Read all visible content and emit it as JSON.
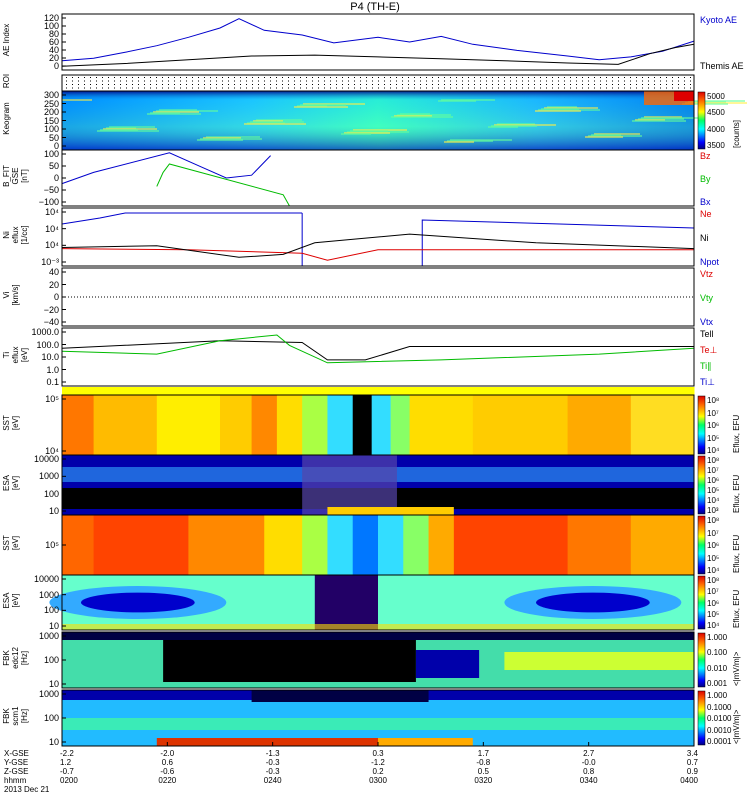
{
  "title": "P4 (TH-E)",
  "colors": {
    "kyoto": "#0000cc",
    "themis": "#000000",
    "red": "#dd0000",
    "green": "#00bb00",
    "blue": "#0000cc"
  },
  "chart_data": [
    {
      "type": "line",
      "panel": "ae",
      "ylabel": "AE Index",
      "yticks": [
        "120",
        "100",
        "80",
        "60",
        "40",
        "20",
        "0"
      ],
      "ylim": [
        0,
        120
      ],
      "series": [
        {
          "name": "Kyoto AE",
          "color": "#0000cc",
          "x": [
            0,
            0.05,
            0.1,
            0.15,
            0.2,
            0.25,
            0.28,
            0.32,
            0.38,
            0.43,
            0.5,
            0.55,
            0.6,
            0.65,
            0.72,
            0.8,
            0.85,
            0.9,
            0.95,
            1.0
          ],
          "values": [
            20,
            25,
            38,
            52,
            70,
            90,
            110,
            85,
            75,
            58,
            70,
            60,
            72,
            55,
            42,
            30,
            22,
            28,
            40,
            62
          ]
        },
        {
          "name": "Themis AE",
          "color": "#000000",
          "x": [
            0,
            0.1,
            0.2,
            0.3,
            0.4,
            0.5,
            0.6,
            0.7,
            0.8,
            0.88,
            0.93,
            0.97,
            1.0
          ],
          "values": [
            8,
            14,
            22,
            30,
            32,
            28,
            24,
            20,
            15,
            12,
            35,
            48,
            55
          ]
        }
      ]
    },
    {
      "type": "heatmap",
      "panel": "roi",
      "ylabel": "ROI"
    },
    {
      "type": "heatmap",
      "panel": "keogram",
      "ylabel": "Keogram",
      "yticks": [
        "300",
        "250",
        "200",
        "150",
        "100",
        "50",
        "0"
      ],
      "colorbar": {
        "ticks": [
          "5000",
          "4500",
          "4000",
          "3500"
        ],
        "label": "[counts]"
      }
    },
    {
      "type": "line",
      "panel": "bfit",
      "ylabel": "B_FIT\nGSE\n[nT]",
      "yticks": [
        "100",
        "50",
        "0",
        "−50",
        "−100"
      ],
      "ylim": [
        -100,
        100
      ],
      "series": [
        {
          "name": "Bz",
          "color": "#dd0000",
          "x": [],
          "values": []
        },
        {
          "name": "By",
          "color": "#00bb00",
          "x": [
            0.15,
            0.16,
            0.17,
            0.35,
            0.36
          ],
          "values": [
            -30,
            20,
            50,
            -60,
            -100
          ]
        },
        {
          "name": "Bx",
          "color": "#0000cc",
          "x": [
            0.0,
            0.05,
            0.17,
            0.22,
            0.26,
            0.3,
            0.33
          ],
          "values": [
            -20,
            20,
            90,
            40,
            0,
            10,
            80
          ]
        }
      ]
    },
    {
      "type": "line",
      "panel": "ni",
      "ylabel": "Ni\neflux\n[1/cc]",
      "yticks": [
        "10⁴",
        "10⁴",
        "10⁴",
        "10⁻³"
      ],
      "series": [
        {
          "name": "Ne",
          "color": "#dd0000"
        },
        {
          "name": "Ni",
          "color": "#000000"
        },
        {
          "name": "Npot",
          "color": "#0000cc"
        }
      ]
    },
    {
      "type": "line",
      "panel": "vi",
      "ylabel": "Vi\n[km/s]",
      "yticks": [
        "40",
        "20",
        "0",
        "−20",
        "−40"
      ],
      "ylim": [
        -40,
        40
      ],
      "series": [
        {
          "name": "Vtz",
          "color": "#dd0000"
        },
        {
          "name": "Vty",
          "color": "#00bb00"
        },
        {
          "name": "Vtx",
          "color": "#0000cc"
        }
      ]
    },
    {
      "type": "line",
      "panel": "ti",
      "ylabel": "Ti\neflux\n[eV]",
      "yticks": [
        "1000.0",
        "100.0",
        "10.0",
        "1.0",
        "0.1"
      ],
      "series": [
        {
          "name": "Tell",
          "color": "#000000"
        },
        {
          "name": "Te⊥",
          "color": "#dd0000"
        },
        {
          "name": "Ti∥",
          "color": "#00bb00"
        },
        {
          "name": "Ti⊥",
          "color": "#0000cc"
        }
      ]
    },
    {
      "type": "heatmap",
      "panel": "sst1",
      "ylabel": "SST\n[eV]",
      "yticks": [
        "10⁵",
        "10⁴"
      ],
      "colorbar": {
        "ticks": [
          "10⁸",
          "10⁷",
          "10⁶",
          "10⁵",
          "10⁴"
        ],
        "label": "Eflux, EFU"
      }
    },
    {
      "type": "heatmap",
      "panel": "esa1",
      "ylabel": "ESA\n[eV]",
      "yticks": [
        "10000",
        "1000",
        "100",
        "10"
      ],
      "colorbar": {
        "ticks": [
          "10⁸",
          "10⁷",
          "10⁶",
          "10⁵",
          "10⁴",
          "10³"
        ],
        "label": "Eflux, EFU"
      }
    },
    {
      "type": "heatmap",
      "panel": "sst2",
      "ylabel": "SST\n[eV]",
      "yticks": [
        "10⁵"
      ],
      "colorbar": {
        "ticks": [
          "10⁸",
          "10⁷",
          "10⁶",
          "10⁵",
          "10⁴"
        ],
        "label": "Eflux, EFU"
      }
    },
    {
      "type": "heatmap",
      "panel": "esa2",
      "ylabel": "ESA\n[eV]",
      "yticks": [
        "10000",
        "1000",
        "100",
        "10"
      ],
      "colorbar": {
        "ticks": [
          "10⁸",
          "10⁷",
          "10⁶",
          "10⁵",
          "10⁴"
        ],
        "label": "Eflux, EFU"
      }
    },
    {
      "type": "heatmap",
      "panel": "fbk1",
      "ylabel": "FBK\nedc12\n[Hz]",
      "yticks": [
        "1000",
        "100",
        "10"
      ],
      "colorbar": {
        "ticks": [
          "1.000",
          "0.100",
          "0.010",
          "0.001"
        ],
        "label": "<|mV/m|>"
      }
    },
    {
      "type": "heatmap",
      "panel": "fbk2",
      "ylabel": "FBK\nscm1\n[Hz]",
      "yticks": [
        "1000",
        "100",
        "10"
      ],
      "colorbar": {
        "ticks": [
          "1.000",
          "0.1000",
          "0.0100",
          "0.0010",
          "0.0001"
        ],
        "label": "<|mV/m|>"
      }
    }
  ],
  "xaxis": {
    "row_labels": [
      "X-GSE",
      "Y-GSE",
      "Z-GSE",
      "hhmm",
      "2013 Dec 21"
    ],
    "columns": [
      [
        "-2.2",
        "1.2",
        "-0.7",
        "0200"
      ],
      [
        "-2.0",
        "0.6",
        "-0.6",
        "0220"
      ],
      [
        "-1.3",
        "-0.3",
        "-0.3",
        "0240"
      ],
      [
        "0.3",
        "-1.2",
        "0.2",
        "0300"
      ],
      [
        "1.7",
        "-0.8",
        "0.5",
        "0320"
      ],
      [
        "2.7",
        "-0.0",
        "0.8",
        "0340"
      ],
      [
        "3.4",
        "0.7",
        "0.9",
        "0400"
      ]
    ]
  }
}
